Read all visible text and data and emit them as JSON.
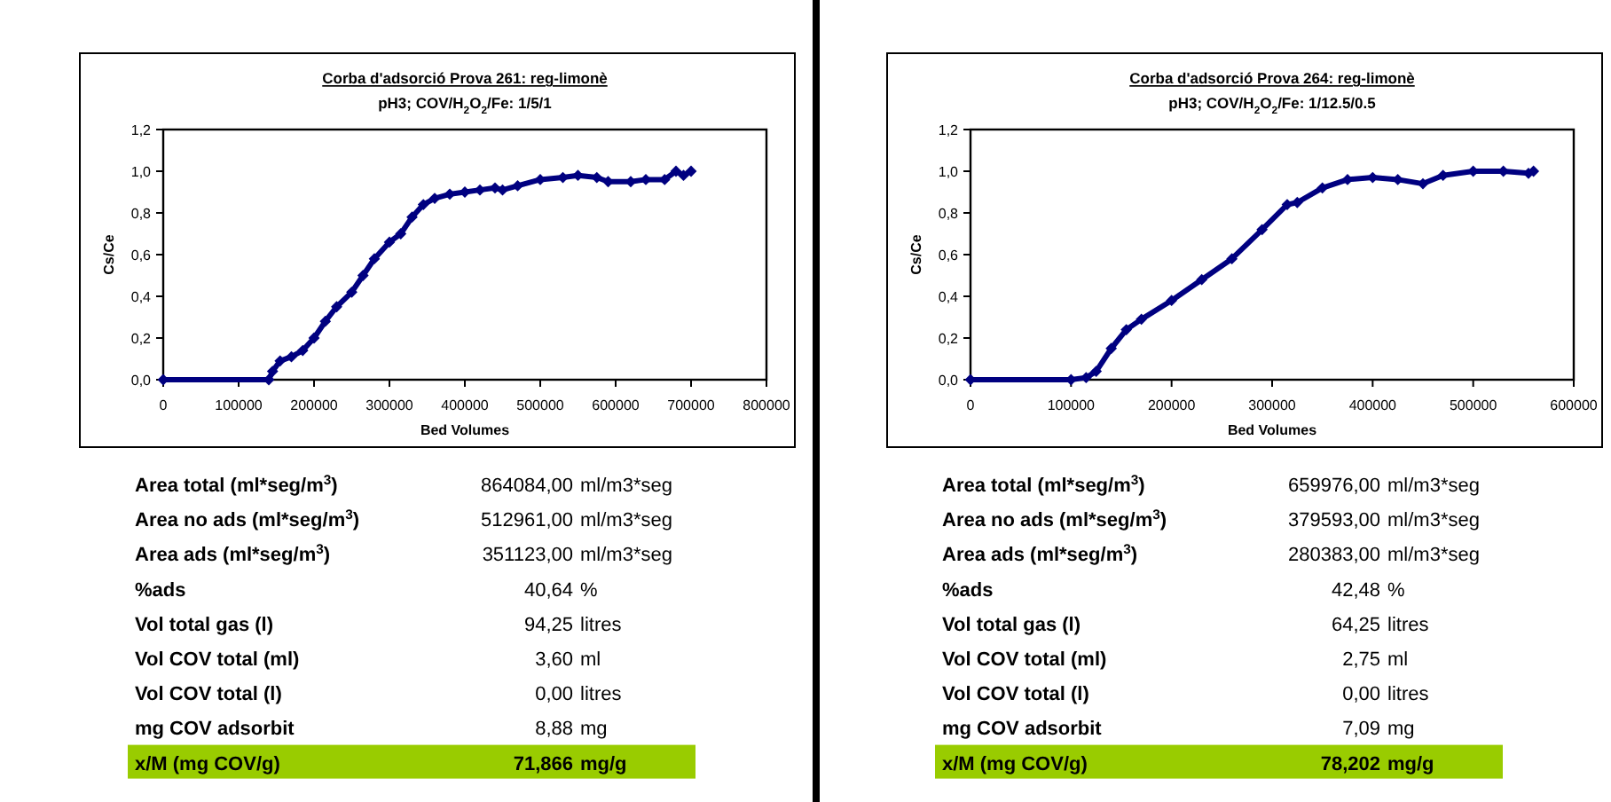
{
  "chart_data": [
    {
      "type": "line",
      "title": "Corba d'adsorció Prova 261: reg-limonè",
      "subtitle": "pH3; COV/H$_{2}$O$_{2}$/Fe: 1/5/1",
      "xlabel": "Bed Volumes",
      "ylabel": "Cs/Ce",
      "marker": "diamond",
      "grid": false,
      "xlim": [
        0,
        800000
      ],
      "xticks": [
        0,
        100000,
        200000,
        300000,
        400000,
        500000,
        600000,
        700000,
        800000
      ],
      "ylim": [
        0,
        1.2
      ],
      "yticks": [
        {
          "value": 0,
          "label": "0,0"
        },
        {
          "value": 0.2,
          "label": "0,2"
        },
        {
          "value": 0.4,
          "label": "0,4"
        },
        {
          "value": 0.6,
          "label": "0,6"
        },
        {
          "value": 0.8,
          "label": "0,8"
        },
        {
          "value": 1.0,
          "label": "1,0"
        },
        {
          "value": 1.2,
          "label": "1,2"
        }
      ],
      "series": [
        {
          "color": "#000080",
          "x": [
            0,
            140000,
            145000,
            155000,
            170000,
            185000,
            200000,
            215000,
            230000,
            250000,
            265000,
            280000,
            300000,
            315000,
            330000,
            345000,
            360000,
            380000,
            400000,
            420000,
            440000,
            450000,
            470000,
            500000,
            530000,
            550000,
            575000,
            590000,
            620000,
            640000,
            665000,
            680000,
            690000,
            700000
          ],
          "values": [
            0,
            0,
            0.04,
            0.09,
            0.11,
            0.14,
            0.2,
            0.28,
            0.35,
            0.42,
            0.5,
            0.58,
            0.66,
            0.7,
            0.78,
            0.84,
            0.87,
            0.89,
            0.9,
            0.91,
            0.92,
            0.91,
            0.93,
            0.96,
            0.97,
            0.98,
            0.97,
            0.95,
            0.95,
            0.96,
            0.96,
            1.0,
            0.98,
            1.0
          ]
        }
      ],
      "annotations": [
        "Area total (ml*seg/m$^{3}$)",
        "864084,00",
        "ml/m3*seg",
        "Area no ads (ml*seg/m$^{3}$)",
        "512961,00",
        "ml/m3*seg",
        "Area ads (ml*seg/m$^{3}$)",
        "351123,00",
        "ml/m3*seg",
        "%ads",
        "40,64",
        "%",
        "Vol total gas (l)",
        "94,25",
        "litres",
        "Vol COV total (ml)",
        "3,60",
        "ml",
        "Vol COV total (l)",
        "0,00",
        "litres",
        "mg COV adsorbit",
        "8,88",
        "mg",
        "x/M (mg COV/g)",
        "71,866",
        "mg/g"
      ]
    },
    {
      "type": "line",
      "title": "Corba d'adsorció Prova 264: reg-limonè",
      "subtitle": "pH3; COV/H$_{2}$O$_{2}$/Fe: 1/12.5/0.5",
      "xlabel": "Bed Volumes",
      "ylabel": "Cs/Ce",
      "marker": "diamond",
      "grid": false,
      "xlim": [
        0,
        600000
      ],
      "xticks": [
        0,
        100000,
        200000,
        300000,
        400000,
        500000,
        600000
      ],
      "ylim": [
        0,
        1.2
      ],
      "yticks": [
        {
          "value": 0,
          "label": "0,0"
        },
        {
          "value": 0.2,
          "label": "0,2"
        },
        {
          "value": 0.4,
          "label": "0,4"
        },
        {
          "value": 0.6,
          "label": "0,6"
        },
        {
          "value": 0.8,
          "label": "0,8"
        },
        {
          "value": 1.0,
          "label": "1,0"
        },
        {
          "value": 1.2,
          "label": "1,2"
        }
      ],
      "series": [
        {
          "color": "#000080",
          "x": [
            0,
            100000,
            115000,
            125000,
            140000,
            155000,
            170000,
            200000,
            230000,
            260000,
            290000,
            315000,
            325000,
            350000,
            375000,
            400000,
            425000,
            450000,
            470000,
            500000,
            530000,
            555000,
            560000
          ],
          "values": [
            0,
            0,
            0.01,
            0.04,
            0.15,
            0.24,
            0.29,
            0.38,
            0.48,
            0.58,
            0.72,
            0.84,
            0.85,
            0.92,
            0.96,
            0.97,
            0.96,
            0.94,
            0.98,
            1.0,
            1.0,
            0.99,
            1.0
          ]
        }
      ],
      "annotations": [
        "Area total (ml*seg/m$^{3}$)",
        "659976,00",
        "ml/m3*seg",
        "Area no ads (ml*seg/m$^{3}$)",
        "379593,00",
        "ml/m3*seg",
        "Area ads (ml*seg/m$^{3}$)",
        "280383,00",
        "ml/m3*seg",
        "%ads",
        "42,48",
        "%",
        "Vol total gas (l)",
        "64,25",
        "litres",
        "Vol COV total (ml)",
        "2,75",
        "ml",
        "Vol COV total (l)",
        "0,00",
        "litres",
        "mg COV adsorbit",
        "7,09",
        "mg",
        "x/M (mg COV/g)",
        "78,202",
        "mg/g"
      ]
    }
  ]
}
